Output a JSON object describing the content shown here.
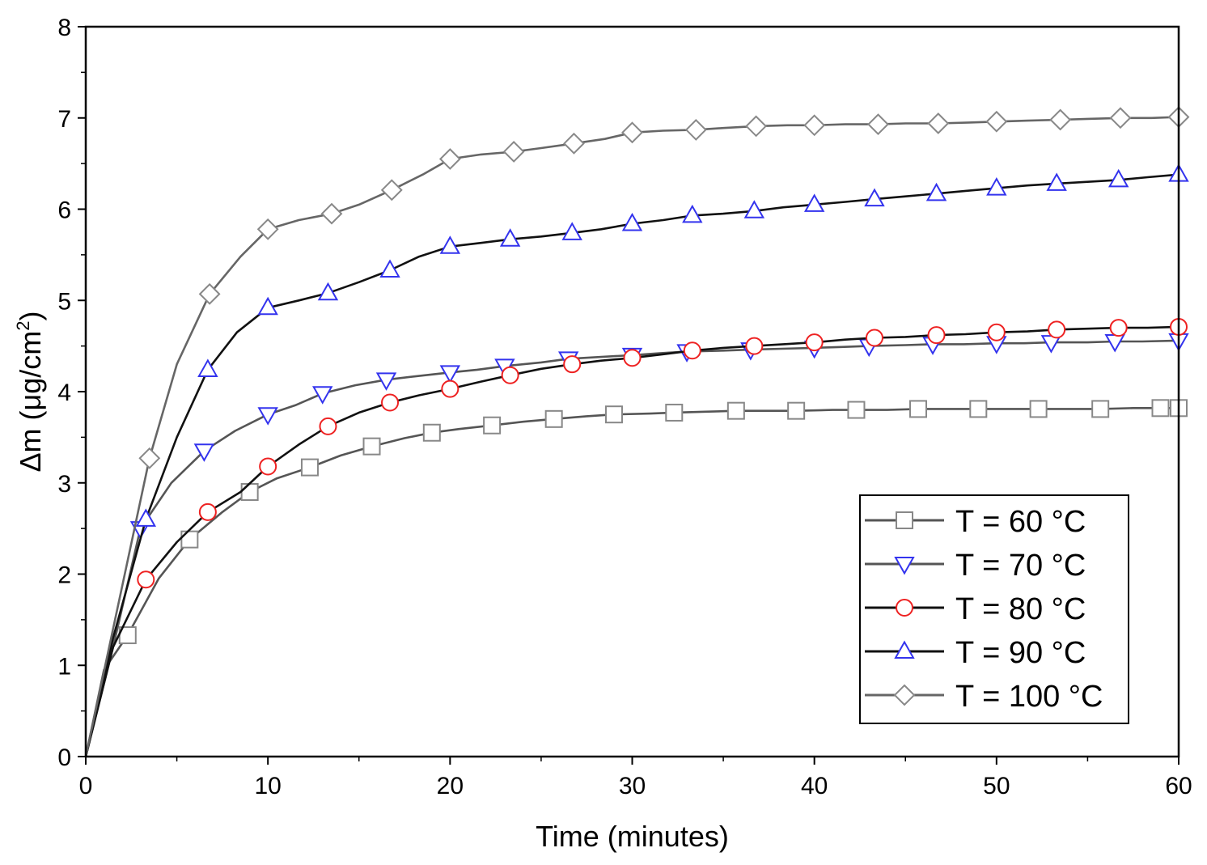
{
  "chart_data": {
    "type": "line",
    "xlabel": "Time (minutes)",
    "ylabel_main": "Δm (μg/cm",
    "ylabel_sup": "2",
    "ylabel_close": ")",
    "xlim": [
      0,
      60
    ],
    "ylim": [
      0,
      8
    ],
    "xticks": [
      0,
      10,
      20,
      30,
      40,
      50,
      60
    ],
    "yticks": [
      0,
      1,
      2,
      3,
      4,
      5,
      6,
      7,
      8
    ],
    "grid": false,
    "legend_position": "bottom-right",
    "series": [
      {
        "name": "T = 60 °C",
        "marker": "square",
        "line_color": "#555555",
        "marker_color": "#888888",
        "x": [
          0,
          1,
          2.3,
          4,
          5.7,
          7.5,
          9,
          10.5,
          12.3,
          14,
          15.7,
          17.5,
          19,
          20.5,
          22.3,
          24,
          25.7,
          27.5,
          29,
          31,
          32.3,
          34,
          35.7,
          37.5,
          39,
          41,
          42.3,
          44,
          45.7,
          47.5,
          49,
          51,
          52.3,
          54,
          55.7,
          57.5,
          59,
          60
        ],
        "y": [
          0,
          0.95,
          1.33,
          1.95,
          2.38,
          2.68,
          2.9,
          3.05,
          3.17,
          3.3,
          3.4,
          3.49,
          3.55,
          3.59,
          3.63,
          3.67,
          3.7,
          3.73,
          3.75,
          3.76,
          3.77,
          3.78,
          3.79,
          3.79,
          3.79,
          3.8,
          3.8,
          3.8,
          3.81,
          3.81,
          3.81,
          3.81,
          3.81,
          3.81,
          3.81,
          3.82,
          3.82,
          3.82
        ]
      },
      {
        "name": "T = 70 °C",
        "marker": "triangle-down",
        "line_color": "#555555",
        "marker_color": "#3333ee",
        "x": [
          0,
          1.5,
          3,
          4.7,
          6.5,
          8.2,
          10,
          11.5,
          13,
          14.8,
          16.5,
          18.2,
          20,
          21.5,
          23,
          25,
          26.5,
          28.2,
          30,
          31.5,
          33,
          35,
          36.5,
          38.2,
          40,
          41.5,
          43,
          45,
          46.5,
          48.2,
          50,
          51.5,
          53,
          55,
          56.5,
          58,
          60
        ],
        "y": [
          0,
          1.2,
          2.5,
          3.0,
          3.35,
          3.57,
          3.75,
          3.85,
          3.98,
          4.07,
          4.13,
          4.17,
          4.21,
          4.24,
          4.28,
          4.32,
          4.36,
          4.38,
          4.4,
          4.42,
          4.44,
          4.45,
          4.46,
          4.47,
          4.48,
          4.49,
          4.5,
          4.51,
          4.52,
          4.52,
          4.53,
          4.53,
          4.54,
          4.54,
          4.55,
          4.55,
          4.56
        ]
      },
      {
        "name": "T = 80 °C",
        "marker": "circle",
        "line_color": "#111111",
        "marker_color": "#ee2222",
        "x": [
          0,
          1.5,
          3.3,
          5,
          6.7,
          8.5,
          10,
          11.7,
          13.3,
          15,
          16.7,
          18.3,
          20,
          21.7,
          23.3,
          25,
          26.7,
          28.3,
          30,
          31.7,
          33.3,
          35,
          36.7,
          38.3,
          40,
          41.7,
          43.3,
          45,
          46.7,
          48.3,
          50,
          51.7,
          53.3,
          55,
          56.7,
          58.3,
          60
        ],
        "y": [
          0,
          1.2,
          1.94,
          2.35,
          2.68,
          2.9,
          3.18,
          3.42,
          3.62,
          3.77,
          3.88,
          3.96,
          4.03,
          4.11,
          4.18,
          4.25,
          4.3,
          4.34,
          4.37,
          4.41,
          4.45,
          4.48,
          4.5,
          4.52,
          4.54,
          4.57,
          4.59,
          4.6,
          4.62,
          4.63,
          4.65,
          4.66,
          4.68,
          4.69,
          4.7,
          4.7,
          4.71
        ]
      },
      {
        "name": "T = 90 °C",
        "marker": "triangle-up",
        "line_color": "#111111",
        "marker_color": "#3333ee",
        "x": [
          0,
          1.5,
          3.3,
          5,
          6.7,
          8.3,
          10,
          11.7,
          13.3,
          15,
          16.7,
          18.3,
          20,
          21.7,
          23.3,
          25,
          26.7,
          28.3,
          30,
          31.7,
          33.3,
          35,
          36.7,
          38.3,
          40,
          41.7,
          43.3,
          45,
          46.7,
          48.3,
          50,
          51.7,
          53.3,
          55,
          56.7,
          58.3,
          60
        ],
        "y": [
          0,
          1.3,
          2.6,
          3.5,
          4.24,
          4.65,
          4.92,
          5.0,
          5.08,
          5.2,
          5.33,
          5.48,
          5.59,
          5.63,
          5.67,
          5.7,
          5.74,
          5.78,
          5.84,
          5.88,
          5.93,
          5.95,
          5.98,
          6.02,
          6.05,
          6.08,
          6.11,
          6.14,
          6.17,
          6.2,
          6.23,
          6.26,
          6.28,
          6.3,
          6.32,
          6.35,
          6.38
        ]
      },
      {
        "name": "T = 100 °C",
        "marker": "diamond",
        "line_color": "#666666",
        "marker_color": "#888888",
        "x": [
          0,
          1.5,
          3.5,
          5,
          6.8,
          8.5,
          10,
          11.7,
          13.5,
          15,
          16.8,
          18.5,
          20,
          21.7,
          23.5,
          25,
          26.8,
          28.5,
          30,
          31.7,
          33.5,
          35,
          36.8,
          38.5,
          40,
          41.7,
          43.5,
          45,
          46.8,
          48.5,
          50,
          51.7,
          53.5,
          55,
          56.8,
          58.5,
          60
        ],
        "y": [
          0,
          1.4,
          3.27,
          4.3,
          5.07,
          5.48,
          5.78,
          5.88,
          5.95,
          6.05,
          6.21,
          6.38,
          6.55,
          6.6,
          6.63,
          6.67,
          6.72,
          6.77,
          6.84,
          6.86,
          6.87,
          6.89,
          6.91,
          6.92,
          6.92,
          6.93,
          6.93,
          6.94,
          6.94,
          6.95,
          6.96,
          6.97,
          6.98,
          6.99,
          7.0,
          7.0,
          7.01
        ]
      }
    ]
  }
}
